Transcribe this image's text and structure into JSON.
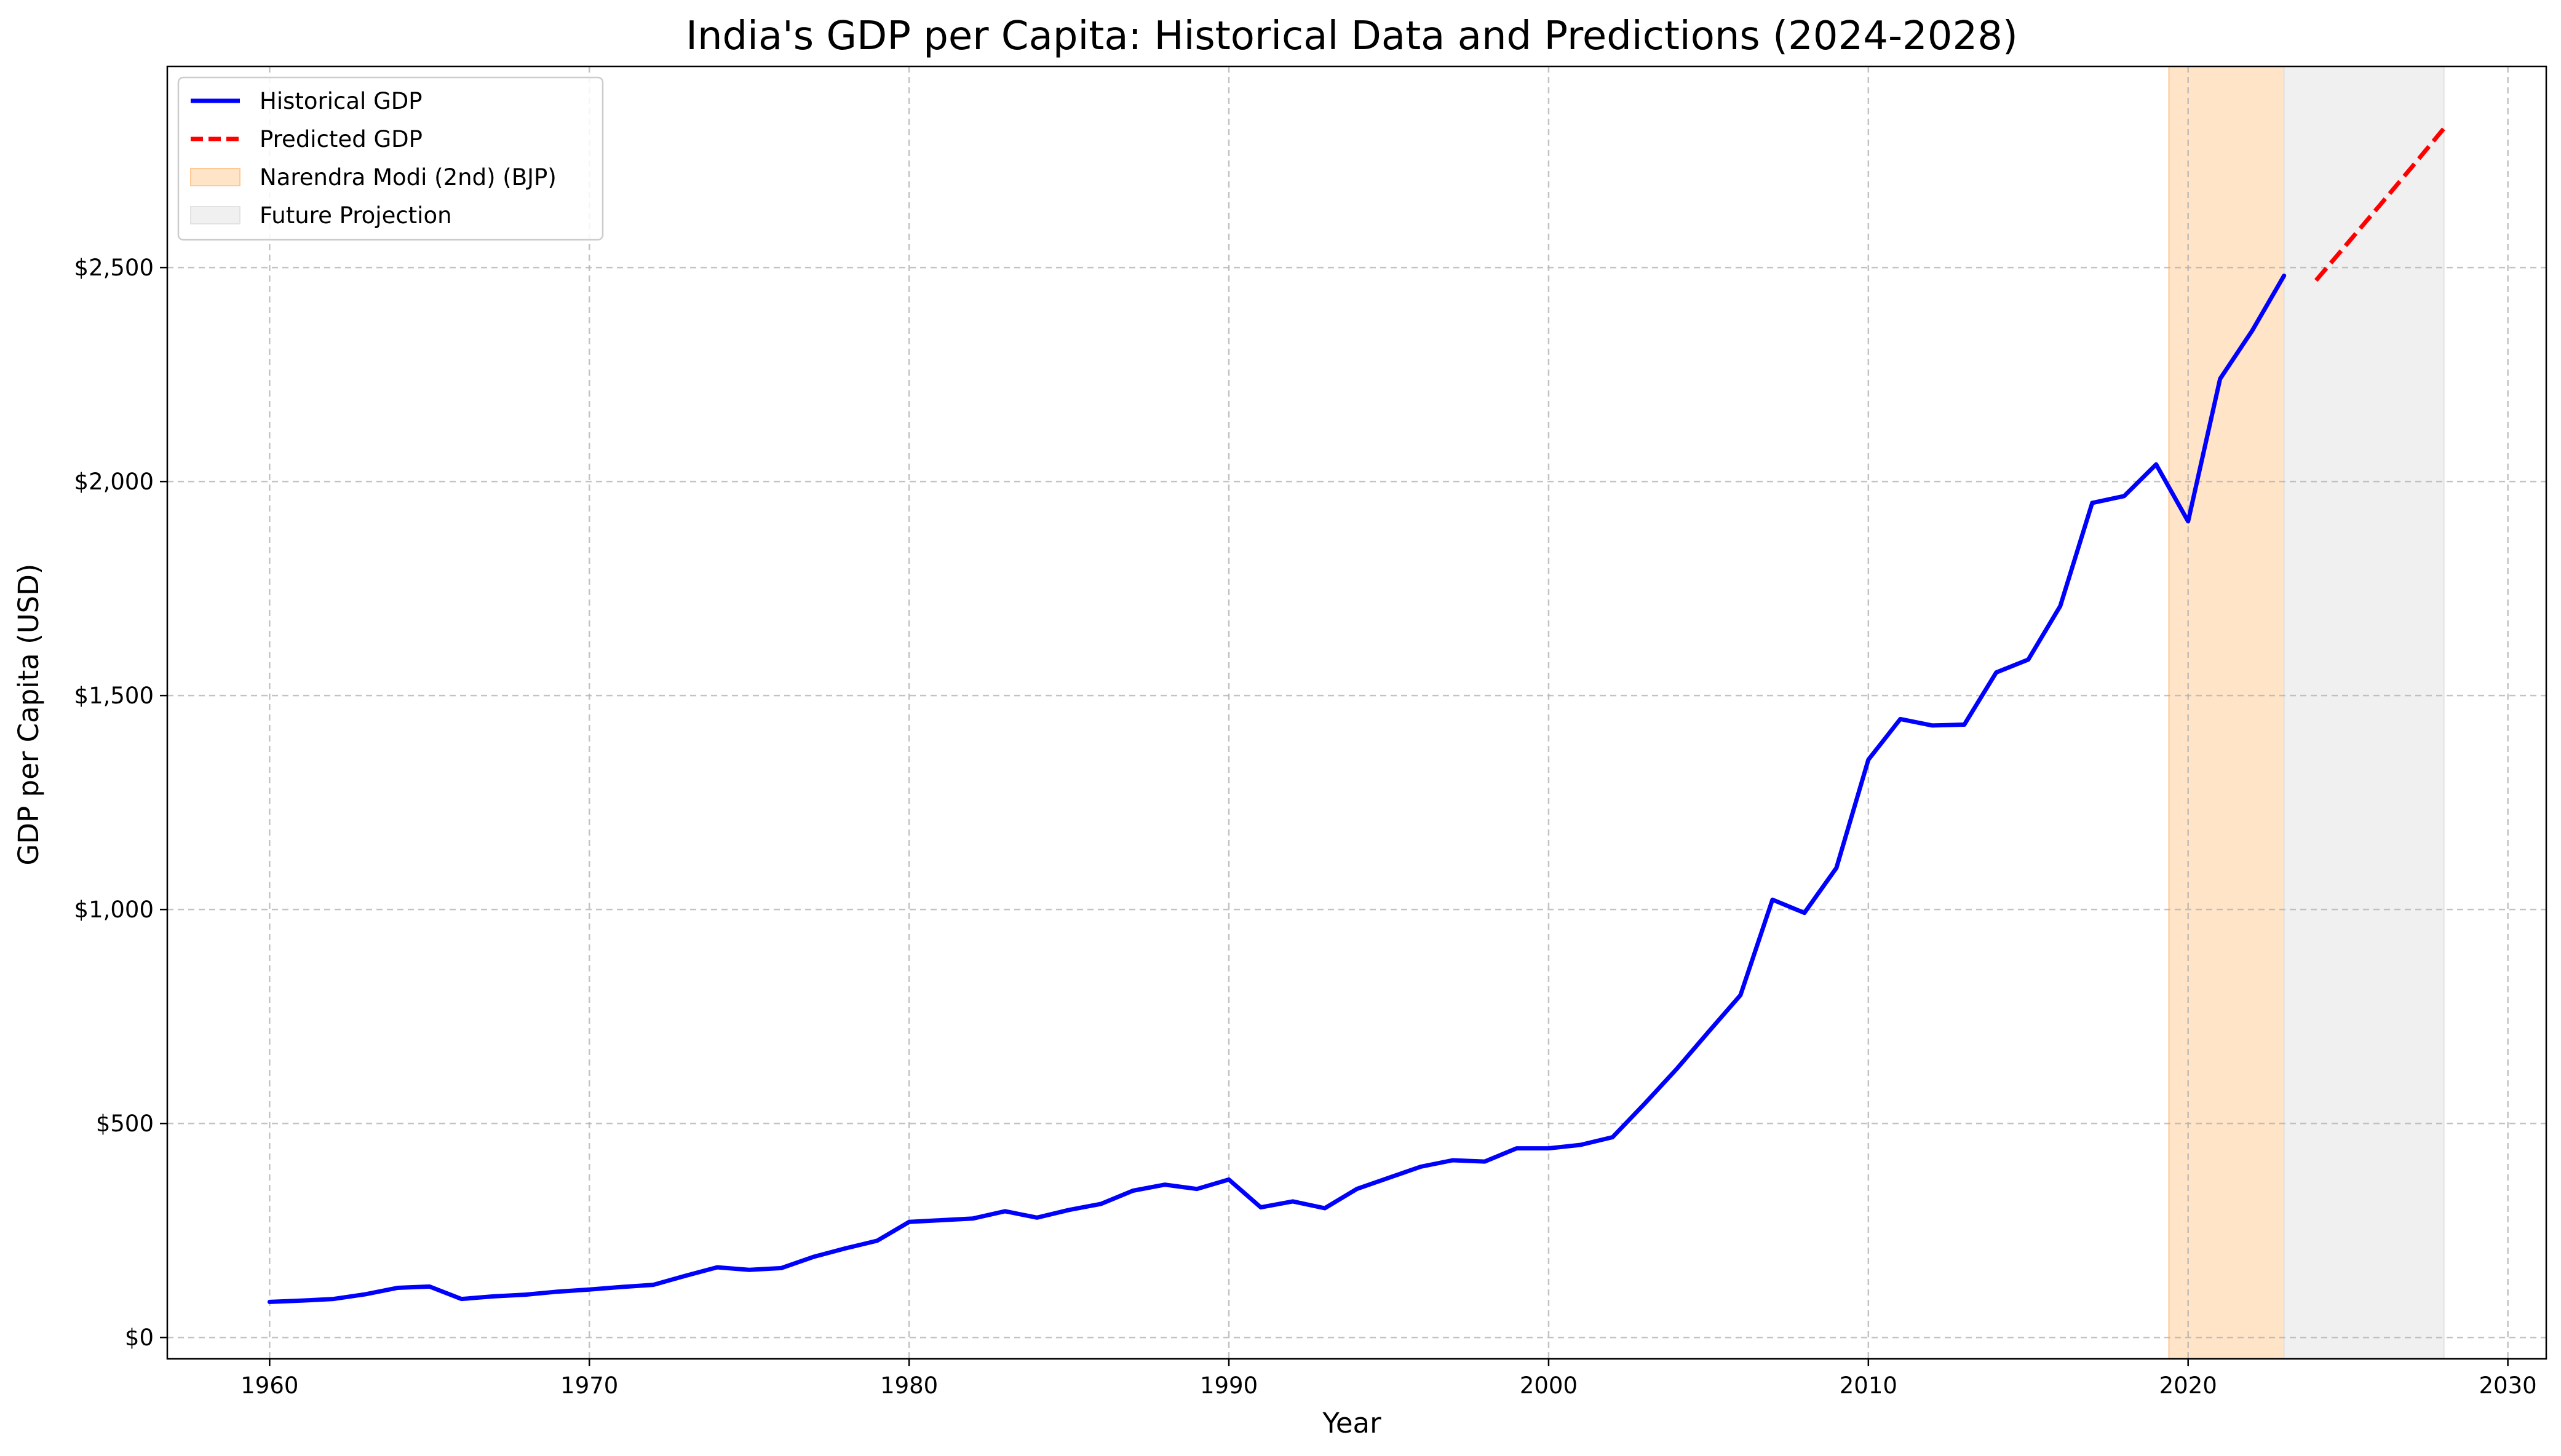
{
  "chart_data": {
    "type": "line",
    "title": "India's GDP per Capita: Historical Data and Predictions (2024-2028)",
    "xlabel": "Year",
    "ylabel": "GDP per Capita (USD)",
    "xlim": [
      1956.8,
      2031.2
    ],
    "ylim": [
      -50,
      2970
    ],
    "x_ticks": [
      1960,
      1970,
      1980,
      1990,
      2000,
      2010,
      2020,
      2030
    ],
    "y_ticks": [
      0,
      500,
      1000,
      1500,
      2000,
      2500
    ],
    "y_tick_labels": [
      "$0",
      "$500",
      "$1,000",
      "$1,500",
      "$2,000",
      "$2,500"
    ],
    "grid": true,
    "legend_position": "top-left",
    "series": [
      {
        "name": "Historical GDP",
        "style": "solid",
        "color": "#0000ff",
        "x": [
          1960,
          1961,
          1962,
          1963,
          1964,
          1965,
          1966,
          1967,
          1968,
          1969,
          1970,
          1971,
          1972,
          1973,
          1974,
          1975,
          1976,
          1977,
          1978,
          1979,
          1980,
          1981,
          1982,
          1983,
          1984,
          1985,
          1986,
          1987,
          1988,
          1989,
          1990,
          1991,
          1992,
          1993,
          1994,
          1995,
          1996,
          1997,
          1998,
          1999,
          2000,
          2001,
          2002,
          2003,
          2004,
          2005,
          2006,
          2007,
          2008,
          2009,
          2010,
          2011,
          2012,
          2013,
          2014,
          2015,
          2016,
          2017,
          2018,
          2019,
          2020,
          2021,
          2022,
          2023
        ],
        "values": [
          83,
          86,
          90,
          101,
          116,
          119,
          90,
          96,
          100,
          107,
          112,
          118,
          123,
          144,
          164,
          158,
          162,
          188,
          208,
          226,
          270,
          274,
          278,
          295,
          280,
          298,
          312,
          343,
          357,
          347,
          369,
          304,
          318,
          302,
          347,
          373,
          399,
          414,
          411,
          442,
          442,
          450,
          468,
          546,
          627,
          714,
          800,
          1023,
          992,
          1097,
          1350,
          1445,
          1430,
          1432,
          1554,
          1584,
          1709,
          1950,
          1966,
          2040,
          1907,
          2240,
          2352,
          2481
        ]
      },
      {
        "name": "Predicted GDP",
        "style": "dashed",
        "color": "#ff0000",
        "x": [
          2024,
          2025,
          2026,
          2027,
          2028
        ],
        "values": [
          2470,
          2558,
          2646,
          2735,
          2825
        ]
      }
    ],
    "spans": [
      {
        "name": "Narendra Modi (2nd) (BJP)",
        "x_start": 2019.4,
        "x_end": 2023,
        "color": "#ffe4c8",
        "edge": "#ffc896"
      },
      {
        "name": "Future Projection",
        "x_start": 2023,
        "x_end": 2028,
        "color": "#f0f0f0",
        "edge": "#e2e2e2"
      }
    ]
  }
}
